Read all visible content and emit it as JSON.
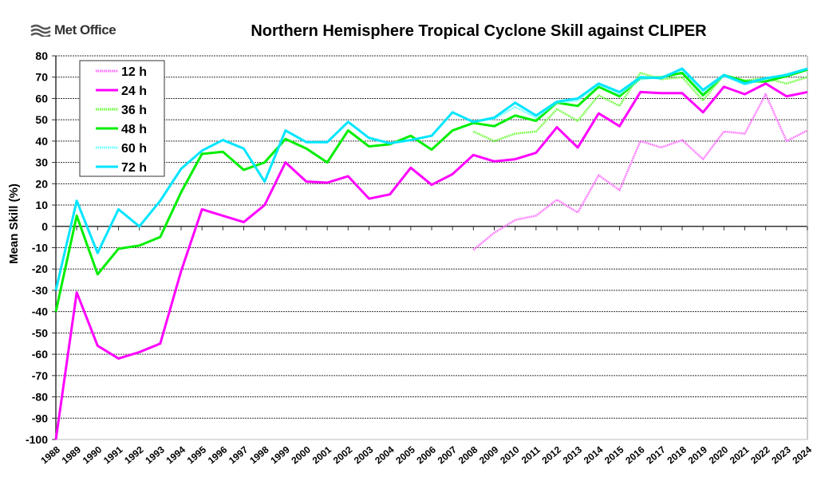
{
  "logo": {
    "text": "Met Office"
  },
  "chart_data": {
    "type": "line",
    "title": "Northern Hemisphere Tropical Cyclone Skill against CLIPER",
    "ylabel": "Mean Skill (%)",
    "xlabel": "",
    "ylim": [
      -100,
      80
    ],
    "yticks": [
      80,
      70,
      60,
      50,
      40,
      30,
      20,
      10,
      0,
      -10,
      -20,
      -30,
      -40,
      -50,
      -60,
      -70,
      -80,
      -90,
      -100
    ],
    "grid": true,
    "legend": "top-left",
    "x": [
      1988,
      1989,
      1990,
      1991,
      1992,
      1993,
      1994,
      1995,
      1996,
      1997,
      1998,
      1999,
      2000,
      2001,
      2002,
      2003,
      2004,
      2005,
      2006,
      2007,
      2008,
      2009,
      2010,
      2011,
      2012,
      2013,
      2014,
      2015,
      2016,
      2017,
      2018,
      2019,
      2020,
      2021,
      2022,
      2023,
      2024
    ],
    "series": [
      {
        "name": "12 h",
        "color": "#ff66ff",
        "style": "dotted",
        "values": [
          null,
          null,
          null,
          null,
          null,
          null,
          null,
          null,
          null,
          null,
          null,
          null,
          null,
          null,
          null,
          null,
          null,
          null,
          null,
          null,
          -11,
          -3,
          3,
          5,
          12.5,
          6.5,
          24,
          17,
          40,
          37,
          40.5,
          31.5,
          44.5,
          43.5,
          62,
          40,
          45
        ]
      },
      {
        "name": "24 h",
        "color": "#ff00ff",
        "style": "solid",
        "values": [
          -100,
          -31,
          -56,
          -62,
          -59,
          -55,
          -21,
          8,
          5,
          2,
          10,
          30,
          21,
          20.5,
          23.5,
          13,
          15,
          27.5,
          19.5,
          24.5,
          33.5,
          30.5,
          31.5,
          34.5,
          46.5,
          37,
          53,
          47,
          63,
          62.5,
          62.5,
          53.5,
          65.5,
          62,
          67,
          61,
          63
        ]
      },
      {
        "name": "36 h",
        "color": "#66ff33",
        "style": "dotted",
        "values": [
          null,
          null,
          null,
          null,
          null,
          null,
          null,
          null,
          null,
          null,
          null,
          null,
          null,
          null,
          null,
          null,
          null,
          null,
          null,
          null,
          44.5,
          40,
          43.5,
          44.5,
          55,
          49.5,
          61.5,
          56.5,
          72,
          69,
          70,
          59,
          71,
          68.5,
          69.5,
          67,
          70
        ]
      },
      {
        "name": "48 h",
        "color": "#00ee00",
        "style": "solid",
        "values": [
          -40,
          5,
          -22.5,
          -10.5,
          -9,
          -5,
          16,
          34,
          35,
          26.5,
          30,
          41,
          36.5,
          30,
          45,
          37.5,
          38.5,
          42.5,
          36,
          45,
          48.5,
          47,
          52,
          49.5,
          58,
          56.5,
          65.5,
          61,
          69.5,
          70,
          72,
          61.5,
          71,
          68,
          68,
          70.5,
          73.5
        ]
      },
      {
        "name": "60 h",
        "color": "#66ffff",
        "style": "dotted",
        "values": [
          null,
          null,
          null,
          null,
          null,
          null,
          null,
          null,
          null,
          null,
          null,
          null,
          null,
          null,
          null,
          null,
          null,
          null,
          null,
          null,
          49,
          50.5,
          56,
          51,
          58,
          59,
          66.5,
          62,
          69,
          70,
          73.5,
          63,
          70.5,
          66.5,
          69,
          71.5,
          74
        ]
      },
      {
        "name": "72 h",
        "color": "#00e5ff",
        "style": "solid",
        "values": [
          -30,
          12,
          -12.5,
          8,
          0,
          12,
          27,
          35.5,
          40.5,
          36.5,
          21,
          45,
          39.5,
          39.5,
          49,
          41.5,
          39,
          40.5,
          42.5,
          53.5,
          49,
          51,
          58,
          52,
          58.5,
          60,
          67,
          63,
          70,
          69.5,
          74,
          64,
          71,
          67,
          69.5,
          71,
          74
        ]
      }
    ]
  }
}
